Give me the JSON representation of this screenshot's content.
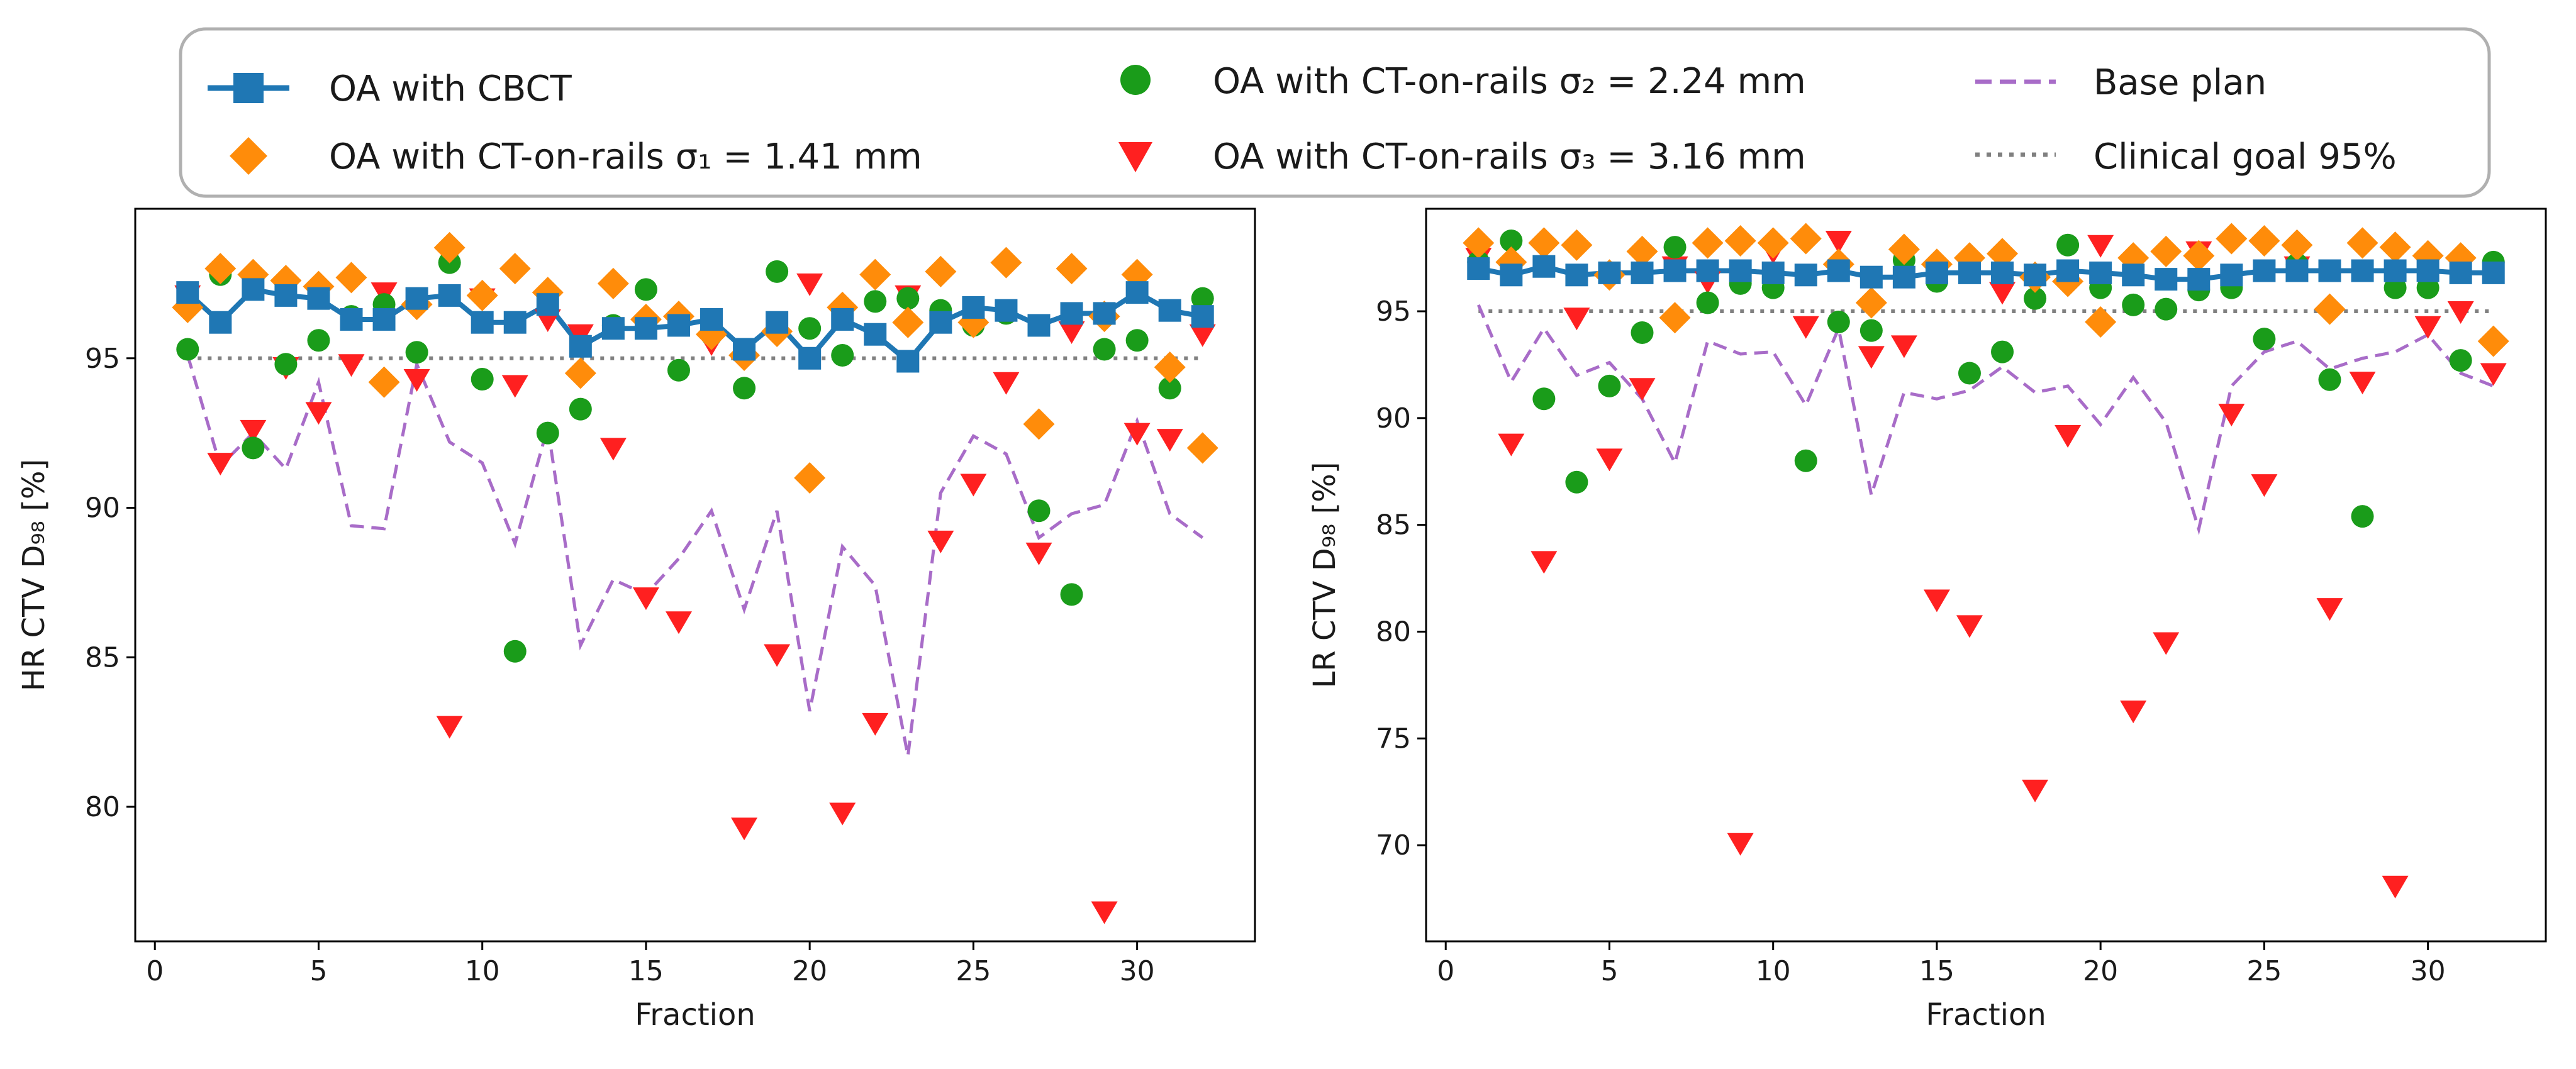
{
  "colors": {
    "cbct": "#1f77b4",
    "sigma1": "#ff8c0a",
    "sigma2": "#1a9c1a",
    "sigma3": "#ff2020",
    "base": "#a86cc8",
    "goal": "#808080"
  },
  "legend": {
    "cbct": "OA with CBCT",
    "sigma1": "OA with CT-on-rails σ₁ = 1.41 mm",
    "sigma2": "OA with CT-on-rails σ₂ = 2.24 mm",
    "sigma3": "OA with CT-on-rails σ₃ = 3.16 mm",
    "base": "Base plan",
    "goal": "Clinical goal 95%"
  },
  "chart_data": [
    {
      "type": "line",
      "name": "HR",
      "xlabel": "Fraction",
      "ylabel": "HR CTV D₉₈ [%]",
      "xlim": [
        -0.6,
        33.6
      ],
      "ylim": [
        75.5,
        100.0
      ],
      "xticks": [
        0,
        5,
        10,
        15,
        20,
        25,
        30
      ],
      "yticks": [
        80,
        85,
        90,
        95
      ],
      "x": [
        1,
        2,
        3,
        4,
        5,
        6,
        7,
        8,
        9,
        10,
        11,
        12,
        13,
        14,
        15,
        16,
        17,
        18,
        19,
        20,
        21,
        22,
        23,
        24,
        25,
        26,
        27,
        28,
        29,
        30,
        31,
        32
      ],
      "goal": 95,
      "series": {
        "cbct": [
          97.2,
          96.2,
          97.3,
          97.1,
          97.0,
          96.3,
          96.3,
          97.0,
          97.1,
          96.2,
          96.2,
          96.8,
          95.4,
          96.0,
          96.0,
          96.1,
          96.3,
          95.3,
          96.2,
          95.0,
          96.3,
          95.8,
          94.9,
          96.2,
          96.7,
          96.6,
          96.1,
          96.5,
          96.5,
          97.2,
          96.6,
          96.4
        ],
        "sigma1": [
          96.7,
          98.0,
          97.8,
          97.6,
          97.4,
          97.7,
          94.2,
          96.8,
          98.7,
          97.1,
          98.0,
          97.2,
          94.5,
          97.5,
          96.3,
          96.4,
          95.8,
          95.1,
          95.9,
          91.0,
          96.7,
          97.8,
          96.2,
          97.9,
          96.2,
          98.2,
          92.8,
          98.0,
          96.4,
          97.8,
          94.7,
          92.0
        ],
        "sigma2": [
          95.3,
          97.8,
          92.0,
          94.8,
          95.6,
          96.4,
          96.8,
          95.2,
          98.2,
          94.3,
          85.2,
          92.5,
          93.3,
          96.1,
          97.3,
          94.6,
          95.8,
          94.0,
          97.9,
          96.0,
          95.1,
          96.9,
          97.0,
          96.6,
          96.1,
          96.5,
          89.9,
          87.1,
          95.3,
          95.6,
          94.0,
          97.0
        ],
        "sigma3": [
          97.1,
          91.5,
          92.6,
          94.7,
          93.2,
          94.8,
          97.2,
          94.3,
          82.7,
          97.0,
          94.1,
          96.3,
          95.8,
          92.0,
          87.0,
          86.2,
          95.5,
          79.3,
          85.1,
          97.5,
          79.8,
          82.8,
          97.1,
          88.9,
          90.8,
          94.2,
          88.5,
          95.9,
          76.5,
          92.5,
          92.3,
          95.8
        ],
        "base": [
          95.1,
          91.4,
          92.5,
          91.3,
          94.2,
          89.4,
          89.3,
          94.8,
          92.2,
          91.5,
          88.8,
          92.7,
          85.4,
          87.6,
          87.1,
          88.3,
          89.9,
          86.6,
          89.9,
          83.2,
          88.7,
          87.4,
          81.7,
          90.5,
          92.4,
          91.8,
          89.0,
          89.8,
          90.1,
          92.9,
          89.8,
          89.0
        ]
      }
    },
    {
      "type": "line",
      "name": "LR",
      "xlabel": "Fraction",
      "ylabel": "LR CTV D₉₈ [%]",
      "xlim": [
        -0.6,
        33.6
      ],
      "ylim": [
        65.5,
        99.8
      ],
      "xticks": [
        0,
        5,
        10,
        15,
        20,
        25,
        30
      ],
      "yticks": [
        70,
        75,
        80,
        85,
        90,
        95
      ],
      "x": [
        1,
        2,
        3,
        4,
        5,
        6,
        7,
        8,
        9,
        10,
        11,
        12,
        13,
        14,
        15,
        16,
        17,
        18,
        19,
        20,
        21,
        22,
        23,
        24,
        25,
        26,
        27,
        28,
        29,
        30,
        31,
        32
      ],
      "goal": 95,
      "series": {
        "cbct": [
          97.0,
          96.7,
          97.1,
          96.7,
          96.8,
          96.8,
          96.9,
          96.9,
          96.9,
          96.8,
          96.7,
          96.9,
          96.6,
          96.6,
          96.8,
          96.8,
          96.8,
          96.7,
          96.9,
          96.8,
          96.7,
          96.5,
          96.5,
          96.7,
          96.9,
          96.9,
          96.9,
          96.9,
          96.9,
          96.9,
          96.8,
          96.8
        ],
        "sigma1": [
          98.2,
          97.3,
          98.2,
          98.1,
          96.7,
          97.8,
          94.7,
          98.2,
          98.3,
          98.2,
          98.4,
          97.2,
          95.4,
          97.9,
          97.2,
          97.5,
          97.7,
          96.6,
          96.4,
          94.5,
          97.5,
          97.8,
          97.6,
          98.4,
          98.3,
          98.1,
          95.1,
          98.2,
          98.0,
          97.6,
          97.5,
          93.6
        ],
        "sigma2": [
          97.3,
          98.3,
          90.9,
          87.0,
          91.5,
          94.0,
          98.0,
          95.4,
          96.3,
          96.1,
          88.0,
          94.5,
          94.1,
          97.4,
          96.4,
          92.1,
          93.1,
          95.6,
          98.1,
          96.1,
          95.3,
          95.1,
          96.0,
          96.1,
          93.7,
          97.2,
          91.8,
          85.4,
          96.1,
          96.1,
          92.7,
          97.3
        ],
        "sigma3": [
          97.5,
          88.8,
          83.3,
          94.7,
          88.1,
          91.4,
          97.1,
          96.4,
          70.1,
          97.8,
          94.3,
          98.3,
          92.9,
          93.4,
          81.5,
          80.3,
          95.9,
          72.6,
          89.2,
          98.1,
          76.3,
          79.5,
          97.8,
          90.2,
          86.9,
          97.1,
          81.1,
          91.7,
          68.1,
          94.3,
          95.0,
          92.1
        ],
        "base": [
          95.3,
          91.7,
          94.2,
          92.0,
          92.6,
          90.9,
          87.9,
          93.6,
          93.0,
          93.1,
          90.6,
          94.2,
          86.4,
          91.2,
          90.9,
          91.3,
          92.4,
          91.2,
          91.5,
          89.7,
          91.9,
          89.8,
          84.8,
          91.5,
          93.1,
          93.6,
          92.3,
          92.8,
          93.1,
          93.9,
          92.1,
          91.5
        ]
      }
    }
  ]
}
